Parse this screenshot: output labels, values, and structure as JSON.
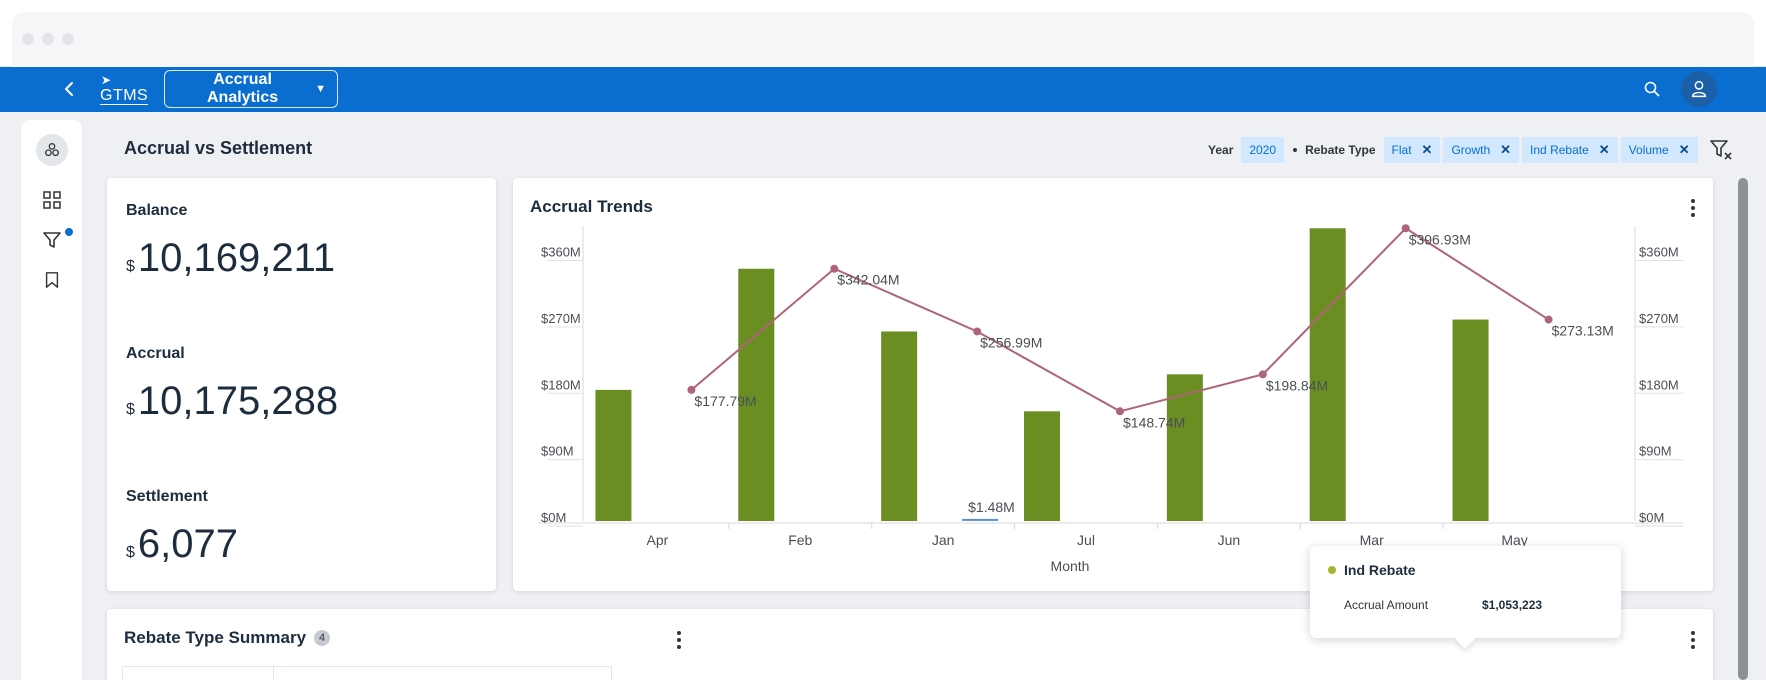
{
  "shellbar": {
    "logo_text": "GTMS",
    "app_title": "Accrual Analytics"
  },
  "page": {
    "title": "Accrual vs Settlement"
  },
  "filters": {
    "year_label": "Year",
    "year_tokens": [
      "2020"
    ],
    "rebate_label": "Rebate Type",
    "rebate_tokens": [
      "Flat",
      "Growth",
      "Ind Rebate",
      "Volume"
    ],
    "remove_glyph": "✕"
  },
  "kpis": {
    "currency": "$",
    "balance_label": "Balance",
    "balance_value": "10,169,211",
    "accrual_label": "Accrual",
    "accrual_value": "10,175,288",
    "settlement_label": "Settlement",
    "settlement_value": "6,077"
  },
  "trends_card": {
    "title": "Accrual Trends"
  },
  "chart_data": {
    "type": "bar",
    "categories": [
      "Apr",
      "Feb",
      "Jan",
      "Jul",
      "Jun",
      "Mar",
      "May"
    ],
    "xlabel": "Month",
    "ylabel": "",
    "ylim": [
      0,
      400
    ],
    "yticks": [
      "$0M",
      "$90M",
      "$180M",
      "$270M",
      "$360M"
    ],
    "ytick_values": [
      0,
      90,
      180,
      270,
      360
    ],
    "series": [
      {
        "name": "Ind Rebate",
        "kind": "bar",
        "color": "#6b8e23",
        "values": [
          177.79,
          342.04,
          256.99,
          148.74,
          198.84,
          396.93,
          273.13
        ]
      },
      {
        "name": "",
        "kind": "bar",
        "color": "#5b8fd1",
        "values": [
          0,
          0,
          1.48,
          0,
          0,
          0,
          0
        ]
      },
      {
        "name": "",
        "kind": "line",
        "color": "#b06477",
        "values": [
          177.79,
          342.04,
          256.99,
          148.74,
          198.84,
          396.93,
          273.13
        ]
      }
    ],
    "data_labels": [
      "$177.79M",
      "$342.04M",
      "$256.99M",
      "$148.74M",
      "$198.84M",
      "$396.93M",
      "$273.13M"
    ],
    "extra_label": "$1.48M",
    "grid": false,
    "dual_axis": true
  },
  "tooltip": {
    "series": "Ind Rebate",
    "key": "Accrual Amount",
    "value": "$1,053,223",
    "color": "#a8b530"
  },
  "summary": {
    "title": "Rebate Type Summary",
    "count": "4"
  },
  "icons": {
    "back": "chevron-left-icon",
    "search": "search-icon",
    "user": "user-icon",
    "clear_filter": "clear-filter-icon"
  }
}
